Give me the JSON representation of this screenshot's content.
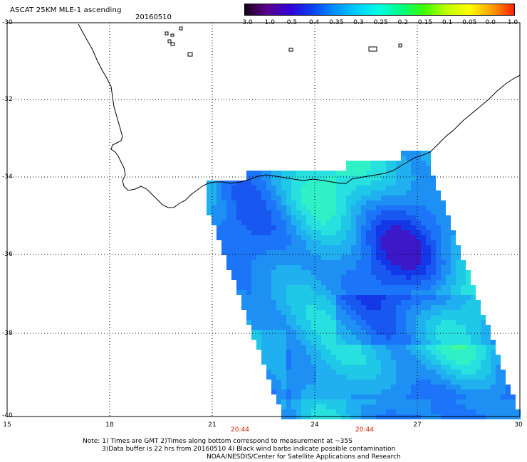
{
  "header": {
    "title": "ASCAT 25KM MLE-1 ascending",
    "date": "20160510"
  },
  "colorbar": {
    "ticks": [
      "-3.0",
      "-1.0",
      "-0.5",
      "-0.4",
      "-0.35",
      "-0.3",
      "-0.25",
      "-0.2",
      "-0.15",
      "-0.1",
      "-0.05",
      "0.0",
      "1.0"
    ],
    "colors": [
      "#1a001a",
      "#5a0090",
      "#3000d8",
      "#0a40f0",
      "#0090ff",
      "#00d0ff",
      "#00ffe0",
      "#00ff80",
      "#40ff00",
      "#c0ff00",
      "#ffff00",
      "#ffa000",
      "#ff2000"
    ]
  },
  "axes": {
    "lat_labels": [
      "-30",
      "-32",
      "-34",
      "-36",
      "-38",
      "-40"
    ],
    "lon_labels": [
      "15",
      "18",
      "21",
      "24",
      "27",
      "30"
    ]
  },
  "times": [
    "20:44",
    "20:44"
  ],
  "footer": {
    "line1": "Note: 1) Times are GMT 2)Times along bottom correspond to measurement at ~35S",
    "line2": "3)Data buffer is 22 hrs from 20160510 4) Black wind barbs indicate possible contamination",
    "line3": "NOAA/NESDIS/Center for Satellite Applications and Research"
  },
  "swath": {
    "palette": [
      "#3c18c8",
      "#1438e8",
      "#1858f0",
      "#1c74f8",
      "#1e90f4",
      "#20b0f0",
      "#20c8e8",
      "#28e0e0",
      "#30f0c8",
      "#40f8a0"
    ]
  }
}
